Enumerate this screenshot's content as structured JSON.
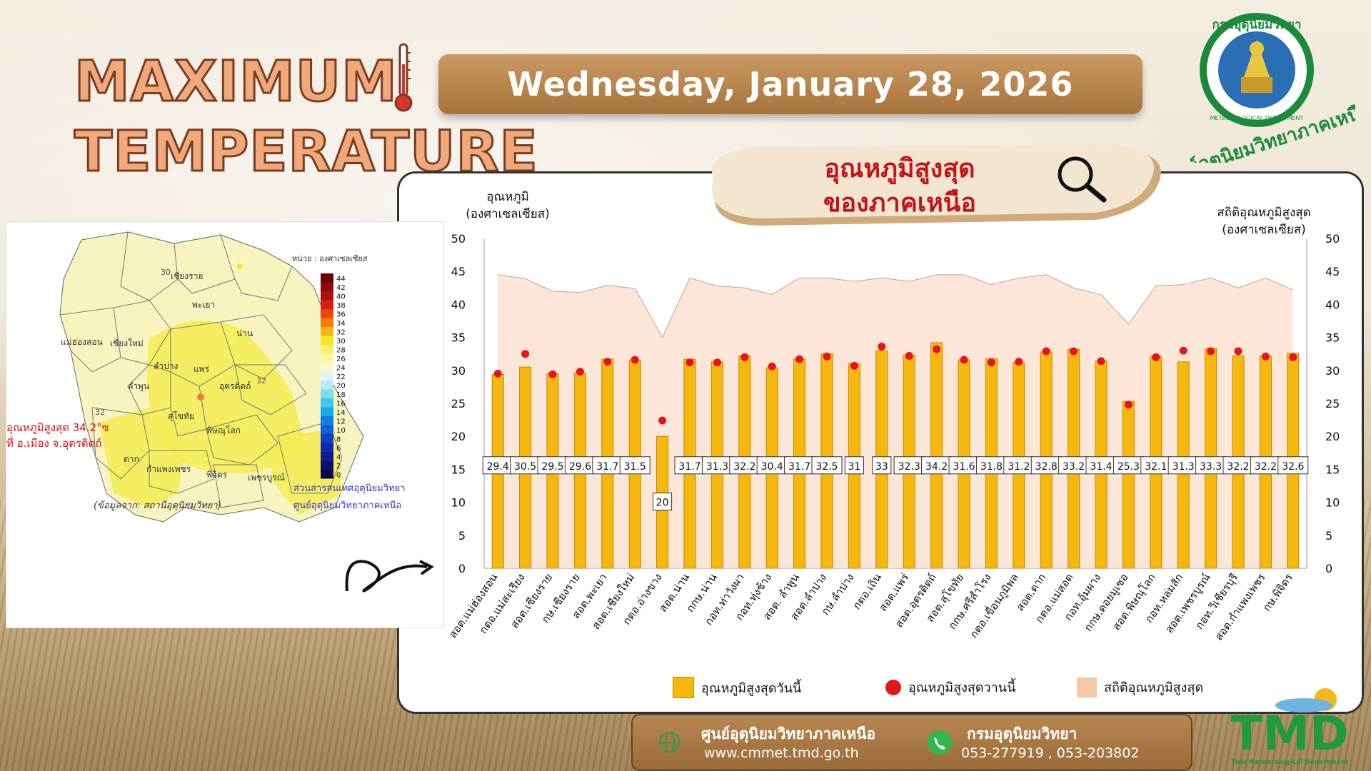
{
  "header": {
    "title_line1": "MAXIMUM",
    "title_line2": "TEMPERATURE",
    "date": "Wednesday, January 28, 2026"
  },
  "bubble": {
    "line1": "อุณหภูมิสูงสุด",
    "line2": "ของภาคเหนือ"
  },
  "logo": {
    "top_text": "กรมอุตุนิยมวิทยา",
    "ring_text": "METEOROLOGICAL DEPARTMENT",
    "bottom_text": "ศูนย์อุตุนิยมวิทยาภาคเหนือ"
  },
  "map": {
    "unit_note": "หน่วย : องศาเซลเซียส",
    "max_note_1": "อุณหภูมิสูงสุด 34.2°ซ",
    "max_note_2": "ที่  อ.เมือง จ.อุตรดิตถ์",
    "source": "(ข้อมูลจาก: สถานีอุตุนิยมวิทยา)",
    "credit_1": "ส่วนสารสนเทศอุตุนิยมวิทยา",
    "credit_2": "ศูนย์อุตุนิยมวิทยาภาคเหนือ",
    "colorbar_ticks": [
      "44",
      "42",
      "40",
      "38",
      "36",
      "34",
      "32",
      "30",
      "28",
      "26",
      "24",
      "22",
      "20",
      "18",
      "16",
      "14",
      "12",
      "10",
      "8",
      "6",
      "4",
      "2",
      "0"
    ],
    "colorbar_colors": [
      "#6e0000",
      "#8a0a0a",
      "#b01010",
      "#d42010",
      "#ee4410",
      "#f47c10",
      "#f8b814",
      "#f5e624",
      "#f8f06a",
      "#fbf6a4",
      "#fdfad0",
      "#e4f4f4",
      "#b8ecf4",
      "#7cdcf0",
      "#3cc8ec",
      "#1aa8e8",
      "#1080e0",
      "#1060d8",
      "#1040c8",
      "#1028b0",
      "#101c90",
      "#0c1070",
      "#080850"
    ],
    "provinces": [
      "เชียงราย",
      "พะเยา",
      "น่าน",
      "แม่ฮ่องสอน",
      "เชียงใหม่",
      "ลำปาง",
      "แพร่",
      "ลำพูน",
      "อุตรดิตถ์",
      "สุโขทัย",
      "พิษณุโลก",
      "ตาก",
      "กำแพงเพชร",
      "พิจิตร",
      "เพชรบูรณ์"
    ],
    "isotherm_labels": [
      "30",
      "32",
      "32"
    ]
  },
  "chart_data": {
    "type": "bar",
    "ylabel": "อุณหภูมิ\n(องศาเซลเซียส)",
    "ylabel_right": "สถิติอุณหภูมิสูงสุด\n(องศาเซลเซียส)",
    "ylim": [
      0,
      50
    ],
    "yticks": [
      0,
      5,
      10,
      15,
      20,
      25,
      30,
      35,
      40,
      45,
      50
    ],
    "categories": [
      "สอต.แม่ฮ่องสอน",
      "กตอ.แม่สะเรียง",
      "สอต.เชียงราย",
      "กษ.เชียงราย",
      "สอต.พะเยา",
      "สอต.เชียงใหม่",
      "กตอ.อ่างขาง",
      "สอต.น่าน",
      "กกษ.น่าน",
      "กอท.ท่าวังผา",
      "กอท.ทุ่งช้าง",
      "สอต. ลำพูน",
      "สอต.ลำปาง",
      "กษ.ลำปาง",
      "กตอ.เถิน",
      "สอต.แพร่",
      "สอต.อุตรดิตถ์",
      "สอต.สุโขทัย",
      "กกษ.ศรีสำโรง",
      "กตอ.เขื่อนภูมิพล",
      "สอต.ตาก",
      "กตอ.แม่สอด",
      "กอท.อุ้มผาง",
      "กกษ.ดอยมูเซอ",
      "สอต.พิษณุโลก",
      "กอท.หล่มสัก",
      "สอต.เพชรบูรณ์",
      "กอท.วิเชียรบุรี",
      "สอต.กำแพงเพชร",
      "กษ.พิจิตร"
    ],
    "series": [
      {
        "name": "อุณหภูมิสูงสุดวันนี้",
        "type": "bar",
        "color": "#f6b70f",
        "values": [
          29.4,
          30.5,
          29.5,
          29.6,
          31.7,
          31.5,
          20,
          31.7,
          31.3,
          32.2,
          30.4,
          31.7,
          32.5,
          31,
          33,
          32.3,
          34.2,
          31.6,
          31.8,
          31.2,
          32.8,
          33.2,
          31.4,
          25.3,
          32.1,
          31.3,
          33.3,
          32.2,
          32.2,
          32.6
        ],
        "labels": [
          "29.4",
          "30.5",
          "29.5",
          "29.6",
          "31.7",
          "31.5",
          "20",
          "31.7",
          "31.3",
          "32.2",
          "30.4",
          "31.7",
          "32.5",
          "31",
          "33",
          "32.3",
          "34.2",
          "31.6",
          "31.8",
          "31.2",
          "32.8",
          "33.2",
          "31.4",
          "25.3",
          "32.1",
          "31.3",
          "33.3",
          "32.2",
          "32.2",
          "32.6"
        ]
      },
      {
        "name": "อุณหภูมิสูงสุดวานนี้",
        "type": "scatter",
        "color": "#e8141c",
        "values": [
          29.5,
          32.5,
          29.4,
          29.8,
          31.3,
          31.6,
          22.4,
          31.2,
          31.2,
          32.0,
          30.6,
          31.7,
          32.1,
          30.7,
          33.6,
          32.2,
          33.2,
          31.6,
          31.2,
          31.3,
          32.9,
          32.9,
          31.4,
          24.8,
          32.0,
          33.0,
          32.9,
          32.9,
          32.1,
          32.0
        ]
      },
      {
        "name": "สถิติอุณหภูมิสูงสุด",
        "type": "area",
        "color": "#fbdcc8",
        "values": [
          44.5,
          43.9,
          42.0,
          41.8,
          42.9,
          42.4,
          35.0,
          44.0,
          42.8,
          42.5,
          41.5,
          44.0,
          44.0,
          43.5,
          44.0,
          43.5,
          44.5,
          44.5,
          43.0,
          44.0,
          44.5,
          42.5,
          41.5,
          37.0,
          42.8,
          43.0,
          44.0,
          42.5,
          44.0,
          42.2
        ]
      }
    ]
  },
  "legend": {
    "item1": "อุณหภูมิสูงสุดวันนี้",
    "item2": "อุณหภูมิสูงสุดวานนี้",
    "item3": "สถิติอุณหภูมิสูงสุด"
  },
  "footer": {
    "center_name": "ศูนย์อุตุนิยมวิทยาภาคเหนือ",
    "website": "www.cmmet.tmd.go.th",
    "dept_name": "กรมอุตุนิยมวิทยา",
    "phones": "053-277919  ,  053-203802"
  },
  "tmd_logo": {
    "text": "TMD",
    "subtext": "Thai Meteorological Department"
  }
}
